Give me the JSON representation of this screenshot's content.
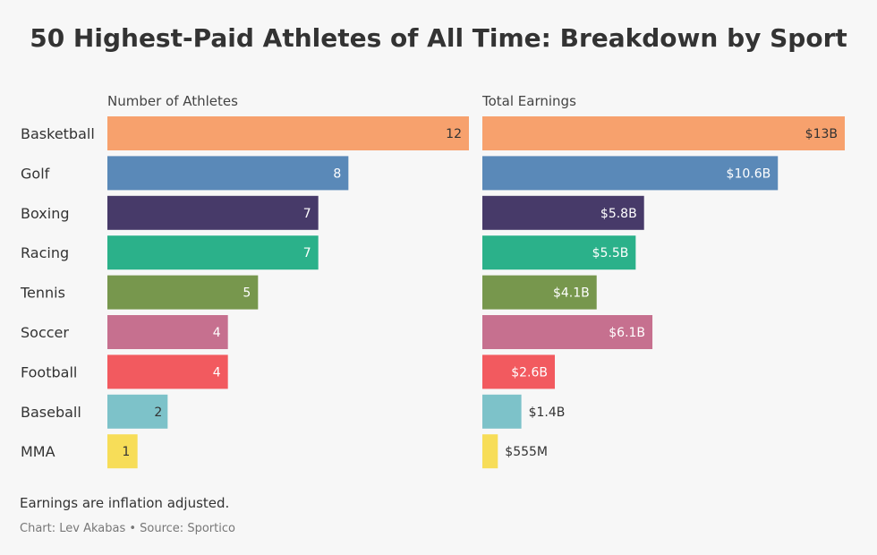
{
  "chart_data": {
    "title": "50 Highest-Paid Athletes of All Time: Breakdown by Sport",
    "type": "bar",
    "orientation": "horizontal",
    "categories": [
      "Basketball",
      "Golf",
      "Boxing",
      "Racing",
      "Tennis",
      "Soccer",
      "Football",
      "Baseball",
      "MMA"
    ],
    "colors": [
      "#f7a16d",
      "#5a89b8",
      "#473a69",
      "#2bb18a",
      "#77974d",
      "#c6708f",
      "#f25a5f",
      "#7dc2c9",
      "#f7dd58"
    ],
    "panels": [
      {
        "title": "Number of Athletes",
        "values": [
          12,
          8,
          7,
          7,
          5,
          4,
          4,
          2,
          1
        ],
        "labels": [
          "12",
          "8",
          "7",
          "7",
          "5",
          "4",
          "4",
          "2",
          "1"
        ],
        "xlim": [
          0,
          12
        ]
      },
      {
        "title": "Total Earnings",
        "unit": "billion USD",
        "values": [
          13,
          10.6,
          5.8,
          5.5,
          4.1,
          6.1,
          2.6,
          1.4,
          0.555
        ],
        "labels": [
          "$13B",
          "$10.6B",
          "$5.8B",
          "$5.5B",
          "$4.1B",
          "$6.1B",
          "$2.6B",
          "$1.4B",
          "$555M"
        ],
        "xlim": [
          0,
          13
        ]
      }
    ],
    "grid": false,
    "legend": "none"
  },
  "footer": {
    "note": "Earnings are inflation adjusted.",
    "credit": "Chart: Lev Akabas • Source: Sportico"
  }
}
